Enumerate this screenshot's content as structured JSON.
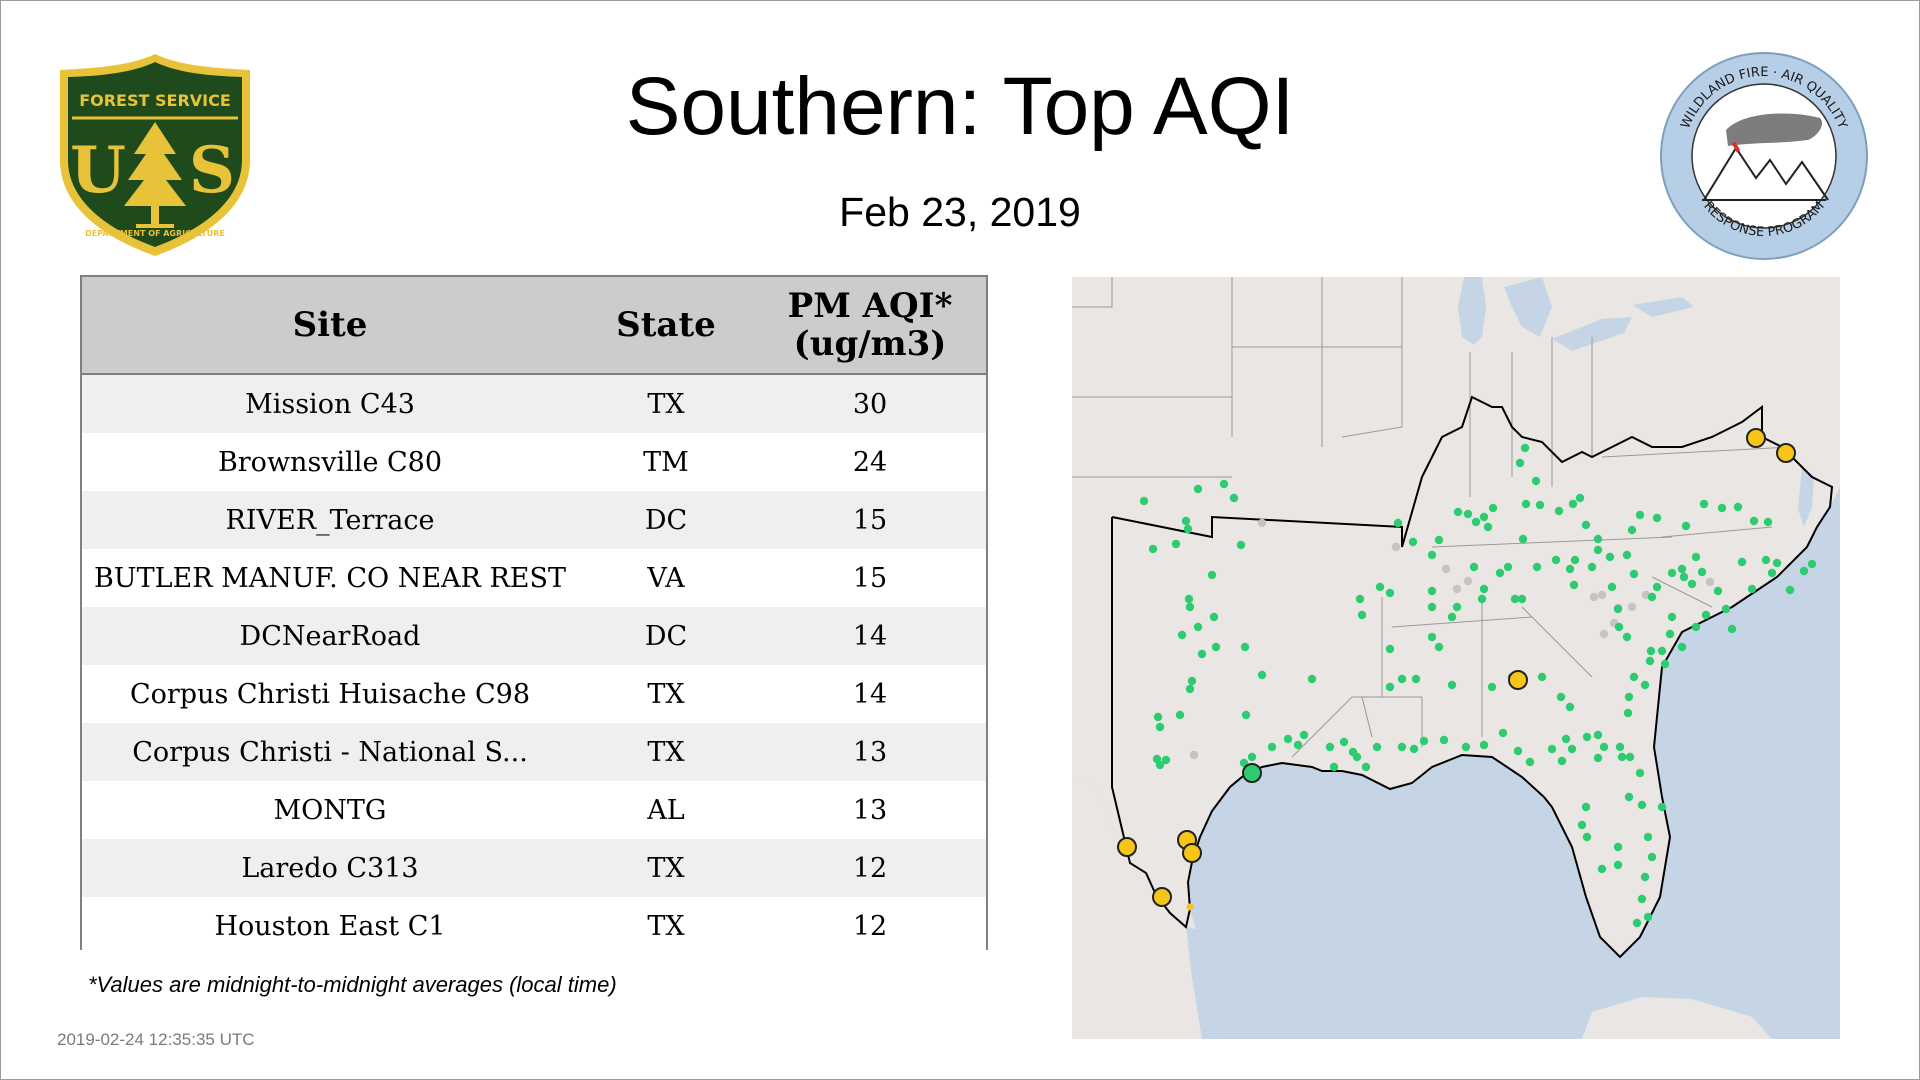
{
  "header": {
    "title": "Southern: Top AQI",
    "date": "Feb 23, 2019"
  },
  "logos": {
    "forest_service": {
      "icon": "forest-service-shield-icon",
      "top_text": "FOREST SERVICE",
      "letters_left": "U",
      "letters_right": "S",
      "bottom_text": "DEPARTMENT OF AGRICULTURE",
      "colors": {
        "shield": "#1f4a1c",
        "gold": "#e8c33a"
      }
    },
    "wildland_fire": {
      "icon": "wildland-fire-air-quality-icon",
      "top_text": "WILDLAND FIRE · AIR QUALITY",
      "bottom_text": "RESPONSE PROGRAM",
      "colors": {
        "ring": "#b7cfe6"
      }
    }
  },
  "table": {
    "headers": {
      "site": "Site",
      "state": "State",
      "aqi_line1": "PM AQI*",
      "aqi_line2": "(ug/m3)"
    },
    "rows": [
      {
        "site": "Mission C43",
        "state": "TX",
        "aqi": "30"
      },
      {
        "site": "Brownsville C80",
        "state": "TM",
        "aqi": "24"
      },
      {
        "site": "RIVER_Terrace",
        "state": "DC",
        "aqi": "15"
      },
      {
        "site": "BUTLER MANUF. CO NEAR REST",
        "state": "VA",
        "aqi": "15"
      },
      {
        "site": "DCNearRoad",
        "state": "DC",
        "aqi": "14"
      },
      {
        "site": "Corpus Christi Huisache C98",
        "state": "TX",
        "aqi": "14"
      },
      {
        "site": "Corpus Christi - National S...",
        "state": "TX",
        "aqi": "13"
      },
      {
        "site": "MONTG",
        "state": "AL",
        "aqi": "13"
      },
      {
        "site": "Laredo C313",
        "state": "TX",
        "aqi": "12"
      },
      {
        "site": "Houston East C1",
        "state": "TX",
        "aqi": "12"
      }
    ]
  },
  "footnote": "*Values are midnight-to-midnight averages (local time)",
  "timestamp": "2019-02-24 12:35:35 UTC",
  "map": {
    "colors": {
      "land": "#eae6e3",
      "water": "#c5d5e6",
      "good": "#2ecc71",
      "moderate": "#f5c518",
      "no_data": "#c4c4c4",
      "border": "#000000"
    }
  }
}
